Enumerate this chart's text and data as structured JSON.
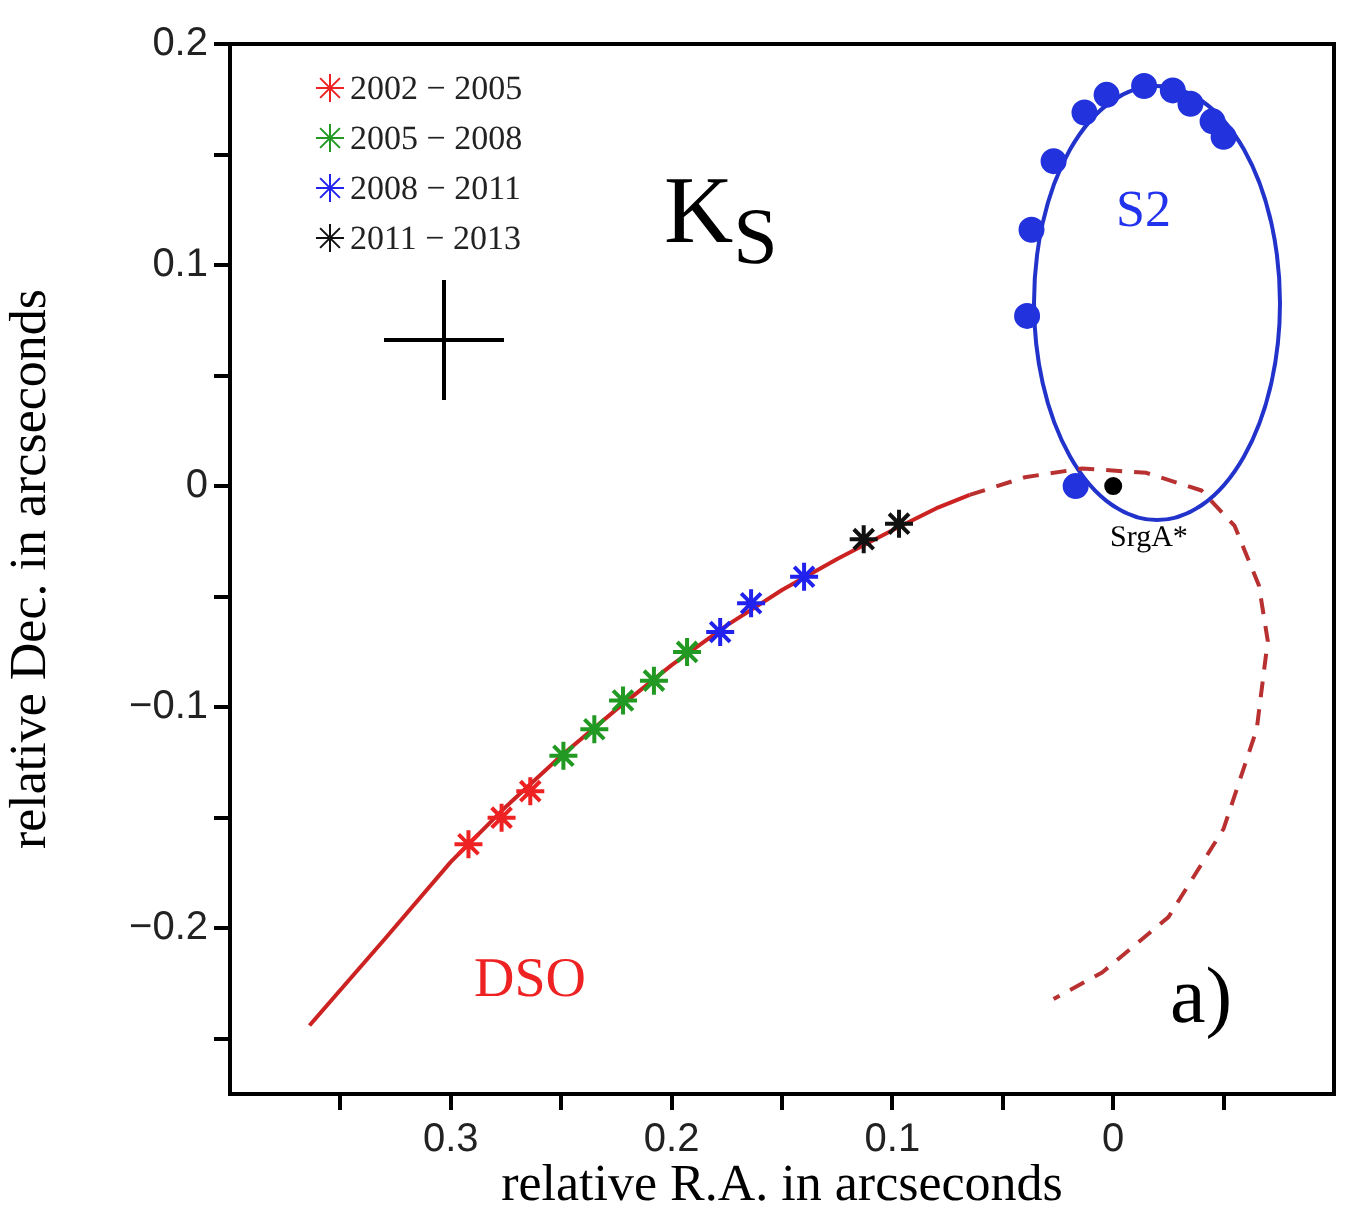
{
  "chart_data": {
    "type": "scatter",
    "xlabel": "relative R.A. in arcseconds",
    "ylabel": "relative Dec. in arcseconds",
    "xlim": [
      0.4,
      -0.1
    ],
    "ylim": [
      -0.275,
      0.2
    ],
    "xticks": [
      {
        "value": 0.35,
        "label": null
      },
      0.3,
      {
        "value": 0.25,
        "label": null
      },
      0.2,
      {
        "value": 0.15,
        "label": null
      },
      0.1,
      {
        "value": 0.05,
        "label": null
      },
      0,
      {
        "value": -0.05,
        "label": null
      }
    ],
    "yticks": [
      {
        "value": -0.25,
        "label": null
      },
      -0.2,
      {
        "value": -0.15,
        "label": null
      },
      -0.1,
      {
        "value": -0.05,
        "label": null
      },
      0,
      {
        "value": 0.05,
        "label": null
      },
      0.1,
      {
        "value": 0.15,
        "label": null
      },
      0.2
    ],
    "grid": false,
    "legend": "top left",
    "series": [
      {
        "type": "line",
        "color": "#cc2222",
        "line_style": "solid",
        "marker": "none",
        "x": [
          0.364,
          0.33,
          0.3,
          0.275,
          0.25,
          0.225,
          0.2,
          0.175,
          0.15,
          0.125,
          0.1,
          0.08,
          0.065
        ],
        "values": [
          -0.244,
          -0.205,
          -0.17,
          -0.145,
          -0.122,
          -0.101,
          -0.081,
          -0.063,
          -0.047,
          -0.033,
          -0.02,
          -0.01,
          -0.004
        ]
      },
      {
        "type": "line",
        "color": "#b83030",
        "line_style": "dashed",
        "marker": "none",
        "x": [
          0.065,
          0.04,
          0.014,
          -0.015,
          -0.04,
          -0.055,
          -0.066,
          -0.07,
          -0.065,
          -0.05,
          -0.025,
          0.005,
          0.027
        ],
        "values": [
          -0.004,
          0.004,
          0.008,
          0.006,
          -0.002,
          -0.018,
          -0.045,
          -0.07,
          -0.11,
          -0.155,
          -0.195,
          -0.22,
          -0.232
        ]
      },
      {
        "color": "#2233dd",
        "marker": "circle",
        "x": [
          0.017,
          0.039,
          0.037,
          0.027,
          0.013,
          0.003,
          -0.014,
          -0.027,
          -0.035,
          -0.045,
          -0.05
        ],
        "values": [
          0,
          0.077,
          0.116,
          0.147,
          0.169,
          0.177,
          0.181,
          0.179,
          0.173,
          0.165,
          0.158
        ]
      },
      {
        "color": "#000000",
        "marker": "circle",
        "x": [
          0
        ],
        "values": [
          0
        ]
      },
      {
        "name": "2002 − 2005",
        "color": "#ee2222",
        "marker": "cross",
        "x": [
          0.292,
          0.277,
          0.264
        ],
        "values": [
          -0.162,
          -0.15,
          -0.138
        ]
      },
      {
        "name": "2005 − 2008",
        "color": "#229922",
        "marker": "cross",
        "x": [
          0.249,
          0.235,
          0.222,
          0.208,
          0.193
        ],
        "values": [
          -0.122,
          -0.11,
          -0.097,
          -0.088,
          -0.075
        ]
      },
      {
        "name": "2008 − 2011",
        "color": "#2222ee",
        "marker": "cross",
        "x": [
          0.178,
          0.164,
          0.14
        ],
        "values": [
          -0.066,
          -0.053,
          -0.041
        ]
      },
      {
        "name": "2011 − 2013",
        "color": "#111111",
        "marker": "cross",
        "x": [
          0.113,
          0.097
        ],
        "values": [
          -0.024,
          -0.017
        ]
      }
    ],
    "annotations": [
      "K$_{S}$",
      "a)",
      "S2",
      "DSO",
      "SrgA*"
    ]
  }
}
